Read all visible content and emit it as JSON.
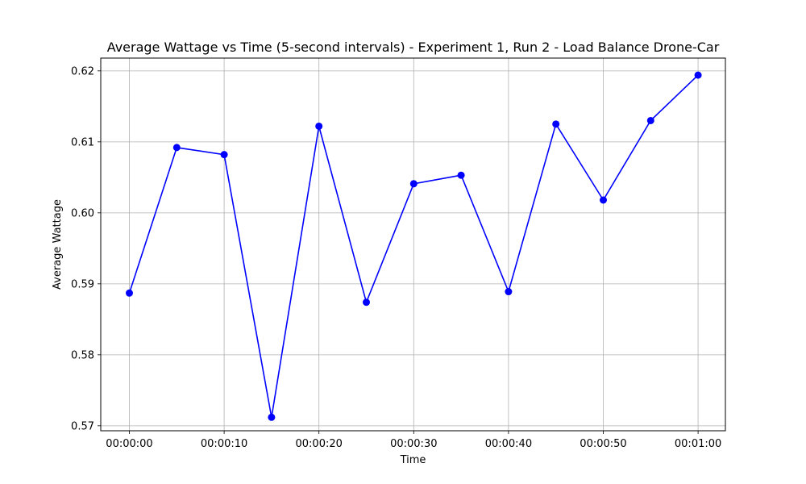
{
  "chart_data": {
    "type": "line",
    "title": "Average Wattage vs Time (5-second intervals)  - Experiment 1, Run 2 - Load Balance Drone-Car",
    "xlabel": "Time",
    "ylabel": "Average Wattage",
    "x": [
      "00:00:00",
      "00:00:05",
      "00:00:10",
      "00:00:15",
      "00:00:20",
      "00:00:25",
      "00:00:30",
      "00:00:35",
      "00:00:40",
      "00:00:45",
      "00:00:50",
      "00:00:55",
      "00:01:00"
    ],
    "x_ticks": [
      "00:00:00",
      "00:00:10",
      "00:00:20",
      "00:00:30",
      "00:00:40",
      "00:00:50",
      "00:01:00"
    ],
    "y_ticks": [
      0.57,
      0.58,
      0.59,
      0.6,
      0.61,
      0.62
    ],
    "y_tick_labels": [
      "0.57",
      "0.58",
      "0.59",
      "0.60",
      "0.61",
      "0.62"
    ],
    "ylim": [
      0.5693,
      0.6218
    ],
    "grid": true,
    "series": [
      {
        "values": [
          0.5887,
          0.6092,
          0.6082,
          0.5712,
          0.6122,
          0.5874,
          0.6041,
          0.6053,
          0.5889,
          0.6125,
          0.6018,
          0.613,
          0.6194
        ],
        "color": "#0000ff",
        "marker": "circle"
      }
    ]
  }
}
